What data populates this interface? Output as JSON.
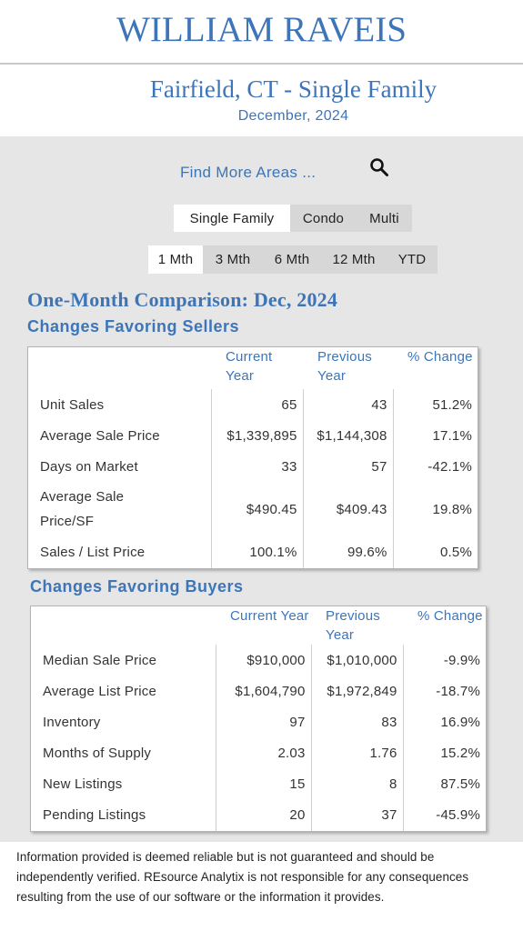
{
  "brand": {
    "logo_text": "WILLIAM RAVEIS"
  },
  "header": {
    "title": "Fairfield, CT - Single Family",
    "period": "December, 2024"
  },
  "find_more": {
    "label": "Find More Areas ...",
    "icon": "search-icon"
  },
  "property_types": {
    "options": [
      "Single Family",
      "Condo",
      "Multi"
    ],
    "selected": "Single Family"
  },
  "time_ranges": {
    "options": [
      "1 Mth",
      "3 Mth",
      "6 Mth",
      "12 Mth",
      "YTD"
    ],
    "selected": "1 Mth"
  },
  "comparison": {
    "title": "One-Month Comparison:  Dec, 2024",
    "sellers": {
      "title": "Changes Favoring Sellers",
      "headers": [
        "Current Year",
        "Previous Year",
        "% Change"
      ],
      "rows": [
        {
          "label": "Unit Sales",
          "current": "65",
          "previous": "43",
          "change": "51.2%"
        },
        {
          "label": "Average Sale Price",
          "current": "$1,339,895",
          "previous": "$1,144,308",
          "change": "17.1%"
        },
        {
          "label": "Days on Market",
          "current": "33",
          "previous": "57",
          "change": "-42.1%"
        },
        {
          "label": "Average Sale Price/SF",
          "current": "$490.45",
          "previous": "$409.43",
          "change": "19.8%"
        },
        {
          "label": "Sales / List Price",
          "current": "100.1%",
          "previous": "99.6%",
          "change": "0.5%"
        }
      ]
    },
    "buyers": {
      "title": "Changes Favoring Buyers",
      "headers": [
        "Current Year",
        "Previous Year",
        "% Change"
      ],
      "rows": [
        {
          "label": "Median Sale Price",
          "current": "$910,000",
          "previous": "$1,010,000",
          "change": "-9.9%"
        },
        {
          "label": "Average List Price",
          "current": "$1,604,790",
          "previous": "$1,972,849",
          "change": "-18.7%"
        },
        {
          "label": "Inventory",
          "current": "97",
          "previous": "83",
          "change": "16.9%"
        },
        {
          "label": "Months of Supply",
          "current": "2.03",
          "previous": "1.76",
          "change": "15.2%"
        },
        {
          "label": "New Listings",
          "current": "15",
          "previous": "8",
          "change": "87.5%"
        },
        {
          "label": "Pending Listings",
          "current": "20",
          "previous": "37",
          "change": "-45.9%"
        }
      ]
    }
  },
  "disclaimer": "Information provided is deemed reliable but is not guaranteed and should be independently verified. REsource Analytix is not responsible for any consequences resulting from the use of our software or the information it provides.",
  "colors": {
    "brand_blue": "#3d75b8",
    "panel_bg": "#e6e6e6",
    "segment_bg": "#d7d7d7",
    "active_bg": "#ffffff"
  }
}
